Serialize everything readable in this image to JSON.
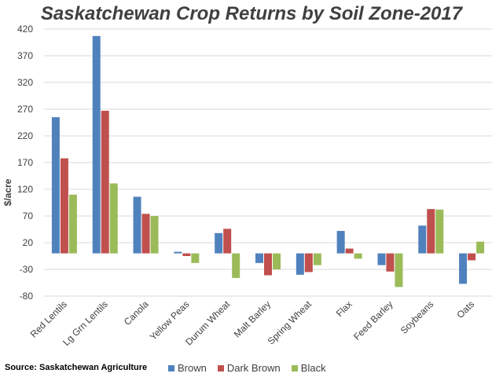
{
  "colors": {
    "Brown": "#4F81BD",
    "Dark Brown": "#C0504D",
    "Black": "#9BBB59",
    "grid": "#d9d9d9",
    "axis_text": "#404040"
  },
  "source": "Source: Saskatchewan Agriculture",
  "chart_data": {
    "type": "bar",
    "title": "Saskatchewan Crop Returns by Soil Zone-2017",
    "xlabel": "",
    "ylabel": "$/acre",
    "ylim": [
      -80,
      420
    ],
    "yticks": [
      420,
      370,
      320,
      270,
      220,
      170,
      120,
      70,
      20,
      -30,
      -80
    ],
    "grid": true,
    "legend": "bottom",
    "categories": [
      "Red Lentils",
      "Lg Grn Lentils",
      "Canola",
      "Yellow Peas",
      "Durum Wheat",
      "Malt Barley",
      "Spring Wheat",
      "Flax",
      "Feed Barley",
      "Soybeans",
      "Oats"
    ],
    "series": [
      {
        "name": "Brown",
        "values": [
          255,
          407,
          106,
          3,
          38,
          -18,
          -40,
          42,
          -22,
          52,
          -57
        ]
      },
      {
        "name": "Dark Brown",
        "values": [
          178,
          267,
          74,
          -5,
          46,
          -41,
          -35,
          9,
          -34,
          83,
          -13
        ]
      },
      {
        "name": "Black",
        "values": [
          110,
          131,
          70,
          -18,
          -46,
          -30,
          -22,
          -10,
          -63,
          82,
          22
        ]
      }
    ]
  }
}
